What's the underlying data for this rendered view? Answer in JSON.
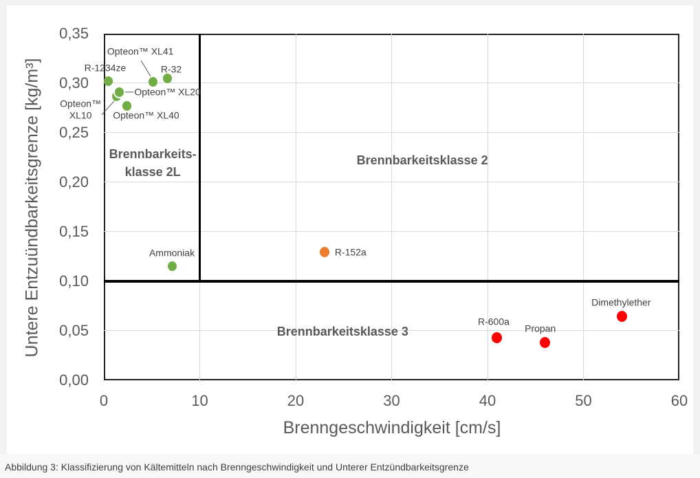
{
  "page": {
    "caption": "Abbildung 3: Klassifizierung von Kältemitteln nach Brenngeschwindigkeit und Unterer Entzündbarkeitsgrenze"
  },
  "colors": {
    "green": "#70AD47",
    "orange": "#ED7D31",
    "red": "#FF0000",
    "axis_text": "#595959",
    "point_label_text": "#404040",
    "gridline": "#D9D9D9",
    "boundary_line": "#000000"
  },
  "chart_data": {
    "type": "scatter",
    "title": "",
    "xlabel": "Brenngeschwindigkeit [cm/s]",
    "ylabel": "Untere Entzuündbarkeitsgrenze [kg/m³]",
    "xlim": [
      0,
      60
    ],
    "ylim": [
      0,
      0.35
    ],
    "grid": true,
    "legend": "none",
    "xticks": {
      "values": [
        0,
        10,
        20,
        30,
        40,
        50,
        60
      ],
      "labels": [
        "0",
        "10",
        "20",
        "30",
        "40",
        "50",
        "60"
      ]
    },
    "yticks": {
      "values": [
        0,
        0.05,
        0.1,
        0.15,
        0.2,
        0.25,
        0.3,
        0.35
      ],
      "labels": [
        "0,00",
        "0,05",
        "0,10",
        "0,15",
        "0,20",
        "0,25",
        "0,30",
        "0,35"
      ]
    },
    "series": [
      {
        "name": "green-points",
        "color": "#70AD47",
        "marker_size": 13,
        "points": [
          {
            "label": "R-1234ze",
            "x": 0.5,
            "y": 0.302,
            "label_dx": -5,
            "label_dy": -19,
            "align": "center"
          },
          {
            "label": "Opteon™ XL41",
            "x": 5.1,
            "y": 0.301,
            "label_dx": -18,
            "label_dy": -44,
            "align": "center",
            "leader": {
              "x1": 3.87,
              "y1": 0.323,
              "x2": 4.87,
              "y2": 0.307
            }
          },
          {
            "label": "R-32",
            "x": 6.6,
            "y": 0.305,
            "label_dx": 6,
            "label_dy": -13,
            "align": "center"
          },
          {
            "label": "Opteon™\nXL10",
            "x": 1.3,
            "y": 0.287,
            "label_dx": -52,
            "label_dy": 20,
            "align": "center",
            "leader": {
              "x1": -0.22,
              "y1": 0.268,
              "x2": 1.08,
              "y2": 0.282
            }
          },
          {
            "label": "Opteon™ XL20",
            "x": 1.6,
            "y": 0.291,
            "label_dx": 22,
            "label_dy": 0,
            "align": "left",
            "white_ring": true,
            "leader": {
              "x1": 1.6,
              "y1": 0.291,
              "x2": 3.1,
              "y2": 0.291
            }
          },
          {
            "label": "Opteon™ XL40",
            "x": 2.4,
            "y": 0.277,
            "label_dx": 28,
            "label_dy": 14,
            "align": "center"
          },
          {
            "label": "Ammoniak",
            "x": 7.1,
            "y": 0.115,
            "label_dx": 0,
            "label_dy": -19,
            "align": "center"
          }
        ]
      },
      {
        "name": "orange-points",
        "color": "#ED7D31",
        "marker_size": 14,
        "points": [
          {
            "label": "R-152a",
            "x": 23,
            "y": 0.129,
            "label_dx": 15,
            "label_dy": 0,
            "align": "left"
          }
        ]
      },
      {
        "name": "red-points",
        "color": "#FF0000",
        "marker_size": 15,
        "points": [
          {
            "label": "R-600a",
            "x": 41,
            "y": 0.043,
            "label_dx": -5,
            "label_dy": -23,
            "align": "center"
          },
          {
            "label": "Propan",
            "x": 46,
            "y": 0.038,
            "label_dx": -7,
            "label_dy": -20,
            "align": "center"
          },
          {
            "label": "Dimethylether",
            "x": 54,
            "y": 0.064,
            "label_dx": -1,
            "label_dy": -20,
            "align": "center"
          }
        ]
      }
    ],
    "regions": [
      {
        "label": "Brennbarkeits-\nklasse 2L",
        "x": 5.1,
        "y": 0.2196
      },
      {
        "label": "Brennbarkeitsklasse 2",
        "x": 33.2,
        "y": 0.2221
      },
      {
        "label": "Brennbarkeitsklasse 3",
        "x": 24.9,
        "y": 0.049
      }
    ],
    "boundaries": [
      {
        "type": "vline",
        "x": 10,
        "y_from": 0.1,
        "y_to": 0.35
      },
      {
        "type": "hline",
        "y": 0.1,
        "x_from": 0,
        "x_to": 60
      }
    ]
  }
}
